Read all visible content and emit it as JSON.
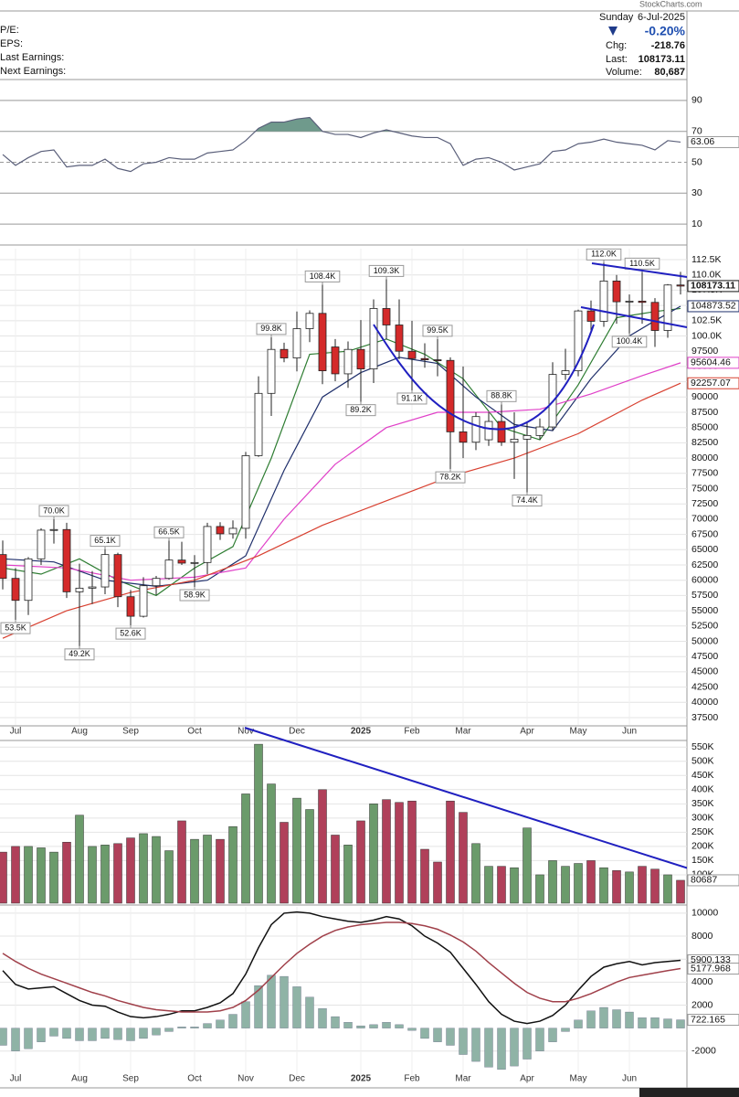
{
  "header": {
    "site": "StockCharts.com",
    "pe": "P/E:",
    "eps": "EPS:",
    "last_earnings": "Last Earnings:",
    "next_earnings": "Next Earnings:",
    "day": "Sunday",
    "date": "6-Jul-2025",
    "change_pct": "-0.20%",
    "chg_label": "Chg:",
    "chg": "-218.76",
    "last_label": "Last:",
    "last": "108173.11",
    "volume_label": "Volume:",
    "volume": "80,687"
  },
  "chart_data": [
    {
      "type": "line",
      "color": "#5a5f7a",
      "fill_color": "#6f9a8c",
      "fill_above": 70,
      "values": [
        55,
        48,
        53,
        57,
        58,
        47,
        48,
        48,
        52,
        46,
        44,
        49,
        50,
        53,
        52,
        52,
        56,
        57,
        58,
        64,
        72,
        76,
        76,
        78,
        79,
        70,
        68,
        68,
        66,
        69,
        71,
        69,
        67,
        66,
        66,
        62,
        48,
        52,
        53,
        50,
        45,
        47,
        49,
        57,
        58,
        62,
        63,
        65,
        63,
        62,
        61,
        58,
        64,
        63.06
      ],
      "ylim": [
        0,
        100
      ],
      "yticks": [
        10,
        30,
        50,
        70,
        90
      ],
      "grid": true
    },
    {
      "type": "candlestick",
      "up_color": "#ffffff",
      "down_color": "#d42a2a",
      "ohlc": [
        [
          64200,
          66500,
          58500,
          60300
        ],
        [
          60300,
          62000,
          53500,
          56700
        ],
        [
          56700,
          63800,
          54300,
          63500
        ],
        [
          63500,
          68500,
          62500,
          68200
        ],
        [
          68200,
          70000,
          66000,
          68300
        ],
        [
          68300,
          69400,
          57100,
          58100
        ],
        [
          58100,
          62700,
          49200,
          58700
        ],
        [
          58700,
          61500,
          56100,
          58900
        ],
        [
          58900,
          65100,
          57700,
          64200
        ],
        [
          64200,
          64500,
          55600,
          57300
        ],
        [
          57300,
          58400,
          52600,
          54100
        ],
        [
          54100,
          60500,
          53900,
          59100
        ],
        [
          59100,
          60700,
          57600,
          60300
        ],
        [
          60300,
          66500,
          60100,
          63300
        ],
        [
          63300,
          66300,
          62500,
          62800
        ],
        [
          62800,
          64100,
          58900,
          62900
        ],
        [
          62900,
          69400,
          61000,
          68800
        ],
        [
          68800,
          69500,
          66600,
          67600
        ],
        [
          67600,
          69800,
          66800,
          68500
        ],
        [
          68500,
          81000,
          66800,
          80400
        ],
        [
          80400,
          93400,
          80200,
          90600
        ],
        [
          90600,
          99800,
          86900,
          97800
        ],
        [
          97800,
          98900,
          95700,
          96400
        ],
        [
          96400,
          104000,
          94200,
          101200
        ],
        [
          101200,
          104200,
          99000,
          103700
        ],
        [
          103700,
          108400,
          92100,
          94300
        ],
        [
          98200,
          99500,
          92600,
          93800
        ],
        [
          93800,
          99100,
          91500,
          97800
        ],
        [
          97800,
          102600,
          89200,
          94600
        ],
        [
          94600,
          106000,
          92300,
          104500
        ],
        [
          104500,
          109300,
          99400,
          101800
        ],
        [
          101800,
          106000,
          96200,
          97500
        ],
        [
          97500,
          102500,
          91100,
          96300
        ],
        [
          96300,
          98800,
          94800,
          96100
        ],
        [
          96100,
          99500,
          93400,
          96000
        ],
        [
          96000,
          96500,
          78200,
          84300
        ],
        [
          84300,
          95000,
          80000,
          82600
        ],
        [
          82600,
          87500,
          81300,
          86800
        ],
        [
          83000,
          87500,
          82000,
          86000
        ],
        [
          86000,
          88800,
          82000,
          82600
        ],
        [
          82600,
          87500,
          76600,
          83100
        ],
        [
          83100,
          86000,
          74400,
          83700
        ],
        [
          83700,
          86500,
          83000,
          85100
        ],
        [
          85100,
          95700,
          84500,
          93700
        ],
        [
          93700,
          97900,
          92800,
          94300
        ],
        [
          94300,
          104300,
          93400,
          104100
        ],
        [
          104100,
          105800,
          100700,
          102400
        ],
        [
          102400,
          112000,
          101500,
          109000
        ],
        [
          109000,
          110000,
          102000,
          105600
        ],
        [
          105600,
          106800,
          100400,
          105700
        ],
        [
          105700,
          110500,
          102000,
          105500
        ],
        [
          105500,
          106200,
          98200,
          100900
        ],
        [
          100900,
          108500,
          99700,
          108350
        ],
        [
          108350,
          110500,
          106800,
          108173.11
        ]
      ],
      "ma_lines": [
        {
          "color": "#2e7d32",
          "x": [
            0,
            3,
            6,
            9,
            12,
            15,
            18,
            21,
            24,
            27,
            30,
            33,
            36,
            39,
            42,
            45,
            48,
            51,
            53
          ],
          "values": [
            62000,
            61000,
            63500,
            60000,
            57500,
            62000,
            65500,
            80000,
            97000,
            97500,
            99500,
            97000,
            93000,
            85000,
            83000,
            92000,
            103000,
            104000,
            104500
          ]
        },
        {
          "color": "#1f2f6b",
          "x": [
            0,
            4,
            8,
            12,
            16,
            19,
            22,
            25,
            28,
            31,
            34,
            37,
            40,
            43,
            46,
            49,
            51,
            53
          ],
          "values": [
            63500,
            63000,
            60000,
            59000,
            60000,
            64000,
            78000,
            90000,
            94000,
            96500,
            95500,
            90000,
            85500,
            84500,
            93000,
            100000,
            102500,
            104873.52
          ]
        },
        {
          "color": "#e040c8",
          "x": [
            0,
            5,
            10,
            15,
            19,
            22,
            26,
            30,
            34,
            38,
            42,
            46,
            50,
            53
          ],
          "values": [
            62500,
            62000,
            60000,
            60500,
            62000,
            70000,
            79000,
            85000,
            87500,
            87500,
            88000,
            90500,
            93500,
            95604.46
          ]
        },
        {
          "color": "#d84030",
          "x": [
            0,
            5,
            10,
            15,
            20,
            25,
            30,
            35,
            40,
            45,
            50,
            53
          ],
          "values": [
            50500,
            55000,
            58000,
            60000,
            64000,
            69000,
            73000,
            77000,
            80000,
            84000,
            89500,
            92257.07
          ]
        }
      ],
      "annotations": [
        {
          "x": 1,
          "value": 53500,
          "label": "53.5K"
        },
        {
          "x": 4,
          "value": 70000,
          "label": "70.0K"
        },
        {
          "x": 6,
          "value": 49200,
          "label": "49.2K"
        },
        {
          "x": 8,
          "value": 65100,
          "label": "65.1K"
        },
        {
          "x": 10,
          "value": 52600,
          "label": "52.6K"
        },
        {
          "x": 13,
          "value": 66500,
          "label": "66.5K"
        },
        {
          "x": 15,
          "value": 58900,
          "label": "58.9K"
        },
        {
          "x": 21,
          "value": 99800,
          "label": "99.8K"
        },
        {
          "x": 25,
          "value": 108400,
          "label": "108.4K"
        },
        {
          "x": 28,
          "value": 89200,
          "label": "89.2K"
        },
        {
          "x": 30,
          "value": 109300,
          "label": "109.3K"
        },
        {
          "x": 32,
          "value": 91100,
          "label": "91.1K"
        },
        {
          "x": 34,
          "value": 99500,
          "label": "99.5K"
        },
        {
          "x": 35,
          "value": 78200,
          "label": "78.2K"
        },
        {
          "x": 39,
          "value": 88800,
          "label": "88.8K"
        },
        {
          "x": 41,
          "value": 74400,
          "label": "74.4K"
        },
        {
          "x": 47,
          "value": 112000,
          "label": "112.0K"
        },
        {
          "x": 49,
          "value": 100400,
          "label": "100.4K"
        },
        {
          "x": 50,
          "value": 110500,
          "label": "110.5K"
        }
      ],
      "ylim": [
        36300,
        114300
      ],
      "yticks": [
        37500,
        40000,
        42500,
        45000,
        47500,
        50000,
        52500,
        55000,
        57500,
        60000,
        62500,
        65000,
        67500,
        70000,
        72500,
        75000,
        77500,
        80000,
        82500,
        85000,
        87500,
        90000,
        92500,
        95000,
        97500,
        {
          "value": 100000,
          "label": "100.0K"
        },
        {
          "value": 102500,
          "label": "102.5K"
        },
        {
          "value": 105000,
          "label": "105.0K"
        },
        {
          "value": 107500,
          "label": "107.5K"
        },
        {
          "value": 110000,
          "label": "110.0K"
        },
        {
          "value": 112500,
          "label": "112.5K"
        }
      ],
      "xticks": [
        {
          "value": 1,
          "label": "Jul"
        },
        {
          "value": 6,
          "label": "Aug"
        },
        {
          "value": 10,
          "label": "Sep"
        },
        {
          "value": 15,
          "label": "Oct"
        },
        {
          "value": 19,
          "label": "Nov"
        },
        {
          "value": 23,
          "label": "Dec"
        },
        {
          "value": 28,
          "label": "2025"
        },
        {
          "value": 32,
          "label": "Feb"
        },
        {
          "value": 36,
          "label": "Mar"
        },
        {
          "value": 41,
          "label": "Apr"
        },
        {
          "value": 45,
          "label": "May"
        },
        {
          "value": 49,
          "label": "Jun"
        }
      ],
      "grid": true
    },
    {
      "type": "bar",
      "up_color": "#6b9b6b",
      "down_color": "#b0405a",
      "values": [
        180000,
        200000,
        200000,
        195000,
        180000,
        215000,
        310000,
        200000,
        205000,
        210000,
        230000,
        245000,
        235000,
        185000,
        290000,
        225000,
        240000,
        225000,
        270000,
        385000,
        560000,
        420000,
        285000,
        370000,
        330000,
        400000,
        240000,
        205000,
        290000,
        350000,
        365000,
        355000,
        360000,
        190000,
        145000,
        360000,
        320000,
        210000,
        130000,
        130000,
        125000,
        265000,
        100000,
        150000,
        130000,
        140000,
        150000,
        125000,
        115000,
        110000,
        130000,
        120000,
        100000,
        80687
      ],
      "ylim": [
        0,
        570000
      ],
      "yticks": [
        {
          "value": 100000,
          "label": "100K"
        },
        {
          "value": 150000,
          "label": "150K"
        },
        {
          "value": 200000,
          "label": "200K"
        },
        {
          "value": 250000,
          "label": "250K"
        },
        {
          "value": 300000,
          "label": "300K"
        },
        {
          "value": 350000,
          "label": "350K"
        },
        {
          "value": 400000,
          "label": "400K"
        },
        {
          "value": 450000,
          "label": "450K"
        },
        {
          "value": 500000,
          "label": "500K"
        },
        {
          "value": 550000,
          "label": "550K"
        }
      ],
      "grid": true
    },
    {
      "type": "macd",
      "histogram_color": "#8fb3a6",
      "series": [
        {
          "color": "#111111",
          "values": [
            5000,
            3800,
            3400,
            3500,
            3600,
            3000,
            2400,
            2000,
            1900,
            1400,
            1000,
            900,
            1000,
            1200,
            1500,
            1500,
            1800,
            2200,
            3000,
            4700,
            7000,
            9000,
            10000,
            10100,
            10000,
            9700,
            9500,
            9300,
            9200,
            9400,
            9700,
            9500,
            8900,
            8000,
            7400,
            6600,
            5200,
            3800,
            2300,
            1200,
            600,
            400,
            600,
            1100,
            2000,
            3300,
            4500,
            5300,
            5600,
            5800,
            5500,
            5700,
            5800,
            5900.133
          ]
        },
        {
          "color": "#a0404a",
          "values": [
            6500,
            5800,
            5200,
            4700,
            4300,
            3900,
            3500,
            3100,
            2800,
            2400,
            2100,
            1800,
            1600,
            1500,
            1400,
            1400,
            1400,
            1500,
            1800,
            2400,
            3300,
            4400,
            5500,
            6500,
            7300,
            8000,
            8500,
            8800,
            9000,
            9100,
            9200,
            9200,
            9100,
            8900,
            8600,
            8100,
            7500,
            6700,
            5700,
            4800,
            3900,
            3100,
            2600,
            2300,
            2300,
            2600,
            3000,
            3500,
            4000,
            4400,
            4600,
            4800,
            5000,
            5177.968
          ]
        }
      ],
      "histogram": [
        -1500,
        -2000,
        -1800,
        -1200,
        -700,
        -900,
        -1100,
        -1100,
        -900,
        -1000,
        -1100,
        -900,
        -600,
        -300,
        100,
        100,
        400,
        700,
        1200,
        2300,
        3700,
        4600,
        4500,
        3600,
        2700,
        1700,
        1000,
        500,
        200,
        300,
        500,
        300,
        -200,
        -900,
        -1200,
        -1500,
        -2300,
        -2900,
        -3400,
        -3600,
        -3300,
        -2700,
        -2000,
        -1200,
        -300,
        700,
        1500,
        1800,
        1600,
        1400,
        900,
        900,
        800,
        722.165
      ],
      "ylim": [
        -5200,
        10550
      ],
      "yticks": [
        -2000,
        2000,
        4000,
        6000,
        8000,
        10000
      ],
      "xticks": [
        {
          "value": 1,
          "label": "Jul"
        },
        {
          "value": 6,
          "label": "Aug"
        },
        {
          "value": 10,
          "label": "Sep"
        },
        {
          "value": 15,
          "label": "Oct"
        },
        {
          "value": 19,
          "label": "Nov"
        },
        {
          "value": 23,
          "label": "Dec"
        },
        {
          "value": 28,
          "label": "2025"
        },
        {
          "value": 32,
          "label": "Feb"
        },
        {
          "value": 36,
          "label": "Mar"
        },
        {
          "value": 41,
          "label": "Apr"
        },
        {
          "value": 45,
          "label": "May"
        },
        {
          "value": 49,
          "label": "Jun"
        }
      ],
      "grid": true
    }
  ]
}
